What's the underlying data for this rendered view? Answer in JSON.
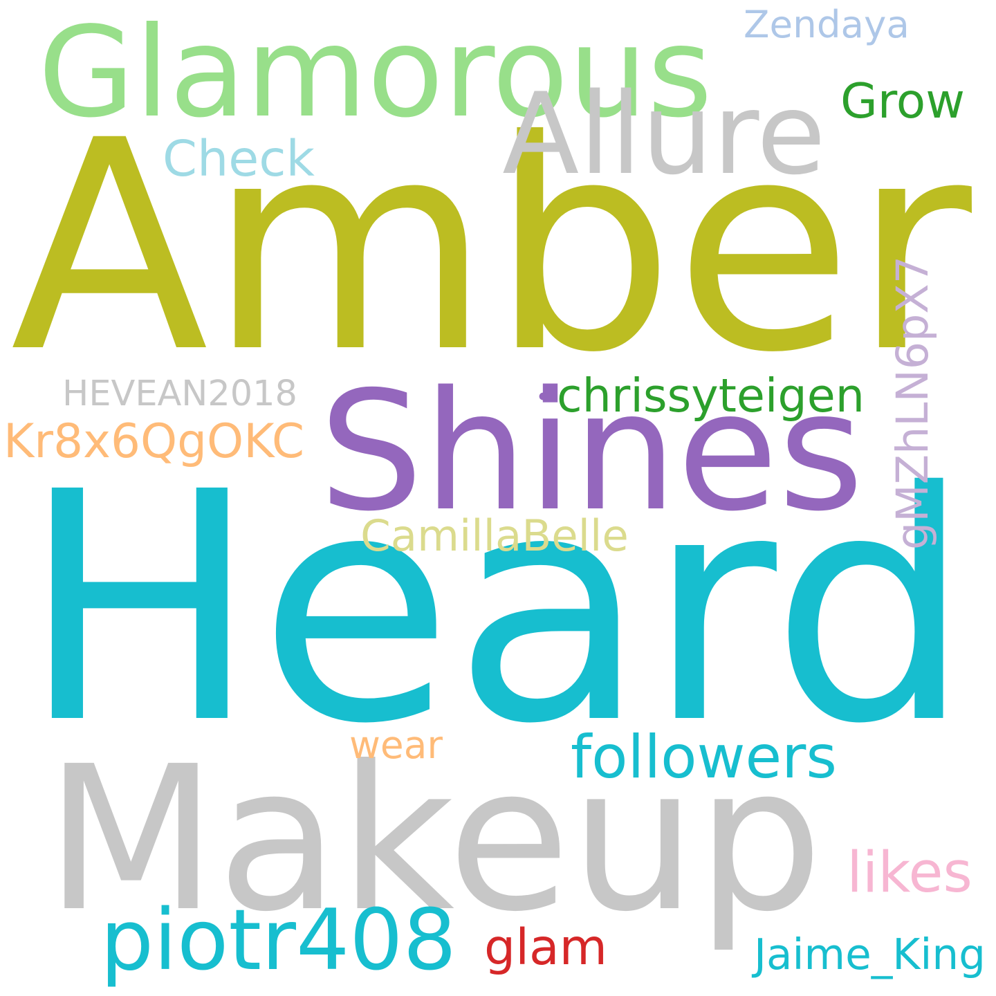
{
  "words": [
    {
      "text": "Heard",
      "color": "#17becf"
    },
    {
      "text": "Amber",
      "color": "#bcbd22"
    },
    {
      "text": "Makeup",
      "color": "#c7c7c7"
    },
    {
      "text": "Shines",
      "color": "#9467bd"
    },
    {
      "text": "Glamorous",
      "color": "#98df8a"
    },
    {
      "text": "Allure",
      "color": "#c7c7c7"
    },
    {
      "text": "piotr408",
      "color": "#17becf"
    },
    {
      "text": "Kr8x6QgOKC",
      "color": "#ffbb78"
    },
    {
      "text": "gMZhLN6pX7",
      "color": "#c5b0d5"
    },
    {
      "text": "followers",
      "color": "#17becf"
    },
    {
      "text": "Grow",
      "color": "#2ca02c"
    },
    {
      "text": "Check",
      "color": "#9edae5"
    },
    {
      "text": "glam",
      "color": "#d62728"
    },
    {
      "text": "likes",
      "color": "#f7b6d2"
    },
    {
      "text": "HEVEAN2018",
      "color": "#c7c7c7"
    },
    {
      "text": "chrissyteigen",
      "color": "#2ca02c"
    },
    {
      "text": "CamillaBelle",
      "color": "#dbdb8d"
    },
    {
      "text": "Jaime_King",
      "color": "#17becf"
    },
    {
      "text": "Zendaya",
      "color": "#aec7e8"
    },
    {
      "text": "wear",
      "color": "#ffbb78"
    },
    {
      "text": "•",
      "color": "#9467bd"
    }
  ]
}
